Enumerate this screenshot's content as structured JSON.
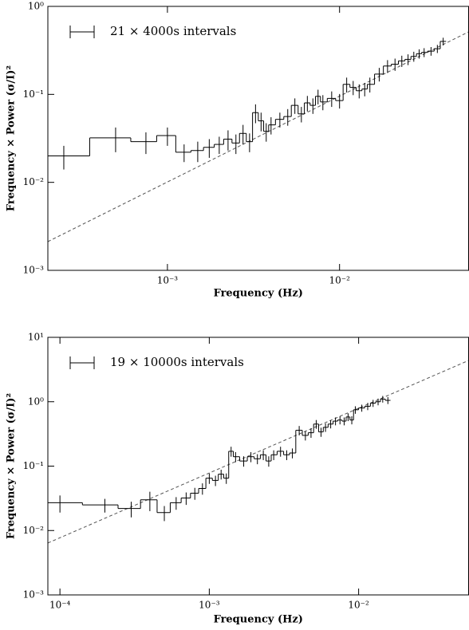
{
  "chart_data": [
    {
      "type": "step-errorbar",
      "xlabel": "Frequency (Hz)",
      "ylabel": "Frequency × Power (σ/I)²",
      "legend_label": "21 × 4000s intervals",
      "legend": "upper left",
      "color": "#000000",
      "log_x": true,
      "log_y": true,
      "x": [
        0.00025,
        0.0005,
        0.00075,
        0.001,
        0.00125,
        0.0015,
        0.00175,
        0.002,
        0.00225,
        0.0025,
        0.00275,
        0.003,
        0.00325,
        0.0035,
        0.00375,
        0.004,
        0.0045,
        0.005,
        0.0055,
        0.006,
        0.0065,
        0.007,
        0.0075,
        0.008,
        0.009,
        0.01,
        0.011,
        0.012,
        0.013,
        0.014,
        0.015,
        0.017,
        0.019,
        0.021,
        0.023,
        0.025,
        0.027,
        0.029,
        0.031,
        0.034,
        0.037,
        0.04
      ],
      "values": [
        0.02,
        0.032,
        0.029,
        0.034,
        0.022,
        0.023,
        0.025,
        0.027,
        0.031,
        0.028,
        0.036,
        0.029,
        0.062,
        0.05,
        0.038,
        0.045,
        0.052,
        0.056,
        0.075,
        0.06,
        0.08,
        0.075,
        0.095,
        0.082,
        0.09,
        0.085,
        0.13,
        0.12,
        0.11,
        0.115,
        0.13,
        0.17,
        0.21,
        0.22,
        0.24,
        0.25,
        0.27,
        0.29,
        0.3,
        0.31,
        0.33,
        0.4
      ],
      "errors": [
        0.006,
        0.01,
        0.008,
        0.008,
        0.005,
        0.006,
        0.006,
        0.006,
        0.008,
        0.007,
        0.009,
        0.007,
        0.015,
        0.012,
        0.009,
        0.01,
        0.01,
        0.012,
        0.015,
        0.012,
        0.016,
        0.015,
        0.018,
        0.016,
        0.018,
        0.016,
        0.025,
        0.022,
        0.02,
        0.02,
        0.025,
        0.03,
        0.035,
        0.035,
        0.035,
        0.035,
        0.035,
        0.035,
        0.035,
        0.035,
        0.035,
        0.04
      ],
      "fit": {
        "x": [
          0.000202,
          0.0562
        ],
        "values": [
          0.00212,
          0.514
        ]
      },
      "xlim": [
        0.000202,
        0.0562
      ],
      "ylim": [
        0.001,
        1
      ],
      "xticks": [
        {
          "value": 0.001,
          "label": "10⁻³"
        },
        {
          "value": 0.01,
          "label": "10⁻²"
        }
      ],
      "yticks": [
        {
          "value": 0.001,
          "label": "10⁻³"
        },
        {
          "value": 0.01,
          "label": "10⁻²"
        },
        {
          "value": 0.1,
          "label": "10⁻¹"
        },
        {
          "value": 1,
          "label": "10⁰"
        }
      ]
    },
    {
      "type": "step-errorbar",
      "xlabel": "Frequency (Hz)",
      "ylabel": "Frequency × Power (σ/I)²",
      "legend_label": "19 × 10000s intervals",
      "legend": "upper left",
      "color": "#000000",
      "log_x": true,
      "log_y": true,
      "x": [
        0.0001,
        0.0002,
        0.0003,
        0.0004,
        0.0005,
        0.0006,
        0.0007,
        0.0008,
        0.0009,
        0.001,
        0.0011,
        0.0012,
        0.0013,
        0.0014,
        0.0015,
        0.0017,
        0.0019,
        0.0021,
        0.0023,
        0.0025,
        0.0027,
        0.003,
        0.0033,
        0.0036,
        0.004,
        0.0044,
        0.0048,
        0.0052,
        0.0056,
        0.006,
        0.0065,
        0.007,
        0.0075,
        0.008,
        0.0085,
        0.009,
        0.0095,
        0.0105,
        0.0115,
        0.0125,
        0.0135,
        0.0145,
        0.0157
      ],
      "values": [
        0.027,
        0.025,
        0.022,
        0.03,
        0.019,
        0.027,
        0.032,
        0.038,
        0.045,
        0.065,
        0.06,
        0.075,
        0.065,
        0.17,
        0.14,
        0.12,
        0.14,
        0.13,
        0.15,
        0.12,
        0.15,
        0.17,
        0.15,
        0.16,
        0.36,
        0.3,
        0.33,
        0.45,
        0.34,
        0.4,
        0.45,
        0.5,
        0.52,
        0.5,
        0.58,
        0.52,
        0.75,
        0.8,
        0.85,
        0.95,
        1.0,
        1.1,
        1.05
      ],
      "errors": [
        0.008,
        0.006,
        0.006,
        0.01,
        0.005,
        0.006,
        0.007,
        0.008,
        0.009,
        0.012,
        0.011,
        0.013,
        0.012,
        0.03,
        0.025,
        0.022,
        0.025,
        0.023,
        0.026,
        0.022,
        0.026,
        0.03,
        0.026,
        0.028,
        0.06,
        0.05,
        0.055,
        0.07,
        0.055,
        0.06,
        0.065,
        0.07,
        0.075,
        0.07,
        0.08,
        0.075,
        0.1,
        0.1,
        0.11,
        0.12,
        0.12,
        0.13,
        0.13
      ],
      "fit": {
        "x": [
          8.3e-05,
          0.0545
        ],
        "values": [
          0.0064,
          4.37
        ]
      },
      "xlim": [
        8.3e-05,
        0.0545
      ],
      "ylim": [
        0.001,
        10
      ],
      "xticks": [
        {
          "value": 0.0001,
          "label": "10⁻⁴"
        },
        {
          "value": 0.001,
          "label": "10⁻³"
        },
        {
          "value": 0.01,
          "label": "10⁻²"
        }
      ],
      "yticks": [
        {
          "value": 0.001,
          "label": "10⁻³"
        },
        {
          "value": 0.01,
          "label": "10⁻²"
        },
        {
          "value": 0.1,
          "label": "10⁻¹"
        },
        {
          "value": 1,
          "label": "10⁰"
        },
        {
          "value": 10,
          "label": "10¹"
        }
      ]
    }
  ]
}
